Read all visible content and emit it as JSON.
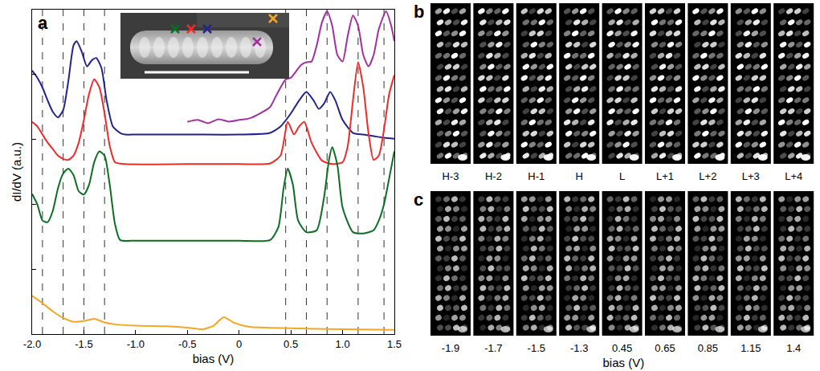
{
  "chart_data": {
    "type": "line",
    "panel_label": "a",
    "x_label": "bias (V)",
    "y_label": "dI/dV (a.u.)",
    "xlim": [
      -2,
      1.5
    ],
    "xticks": [
      {
        "value": -2,
        "label": "-2.0"
      },
      -1.5,
      {
        "value": -1,
        "label": "-1.0"
      },
      -0.5,
      0,
      0.5,
      {
        "value": 1,
        "label": "1.0"
      },
      1.5
    ],
    "ylim": [
      0,
      10
    ],
    "yticks": [
      0,
      2,
      4,
      6,
      8,
      10
    ],
    "tick_labels": "x",
    "grid": false,
    "line_style": "solid",
    "vlines": {
      "x": [
        -1.9,
        -1.7,
        -1.5,
        -1.3,
        0.45,
        0.65,
        0.85,
        1.15,
        1.4
      ],
      "line_style": "dashed"
    },
    "series": [
      {
        "color": "#23238f",
        "x": [
          -2.0,
          -1.95,
          -1.9,
          -1.85,
          -1.8,
          -1.75,
          -1.7,
          -1.65,
          -1.6,
          -1.57,
          -1.52,
          -1.47,
          -1.42,
          -1.38,
          -1.33,
          -1.28,
          -1.22,
          -1.15,
          -1.1,
          -1.0,
          -0.5,
          0,
          0.3,
          0.4,
          0.5,
          0.58,
          0.65,
          0.72,
          0.77,
          0.82,
          0.88,
          0.93,
          1.0,
          1.1,
          1.2,
          1.3,
          1.4,
          1.5
        ],
        "values": [
          8.12,
          7.9,
          7.6,
          7.2,
          6.85,
          6.68,
          6.9,
          7.8,
          8.9,
          9.03,
          8.7,
          8.25,
          8.45,
          8.51,
          8.2,
          7.2,
          6.4,
          6.2,
          6.15,
          6.15,
          6.15,
          6.15,
          6.2,
          6.4,
          6.8,
          7.2,
          7.46,
          7.2,
          6.94,
          7.1,
          7.46,
          7.2,
          6.6,
          6.2,
          6.15,
          6.1,
          6.05,
          6.02
        ]
      },
      {
        "color": "#f02b2b",
        "x": [
          -2.0,
          -1.95,
          -1.9,
          -1.85,
          -1.8,
          -1.75,
          -1.7,
          -1.65,
          -1.6,
          -1.55,
          -1.5,
          -1.45,
          -1.4,
          -1.35,
          -1.3,
          -1.25,
          -1.2,
          -1.1,
          -0.5,
          0,
          0.3,
          0.4,
          0.47,
          0.53,
          0.58,
          0.63,
          0.7,
          0.8,
          0.9,
          1.0,
          1.05,
          1.1,
          1.15,
          1.2,
          1.25,
          1.3,
          1.35,
          1.4,
          1.45,
          1.5
        ],
        "values": [
          6.54,
          6.4,
          6.15,
          5.9,
          5.7,
          5.5,
          5.4,
          5.37,
          5.5,
          5.9,
          6.6,
          7.4,
          7.85,
          7.6,
          6.8,
          5.8,
          5.3,
          5.24,
          5.24,
          5.24,
          5.26,
          5.5,
          6.54,
          6.15,
          6.4,
          6.54,
          5.9,
          5.35,
          5.24,
          5.3,
          5.8,
          7.2,
          8.38,
          7.6,
          6.2,
          5.37,
          5.5,
          6.3,
          7.4,
          7.98
        ]
      },
      {
        "color": "#0c6e22",
        "x": [
          -2.0,
          -1.95,
          -1.9,
          -1.85,
          -1.8,
          -1.75,
          -1.7,
          -1.65,
          -1.6,
          -1.55,
          -1.5,
          -1.45,
          -1.4,
          -1.35,
          -1.3,
          -1.25,
          -1.2,
          -1.15,
          -1.0,
          -0.5,
          0,
          0.3,
          0.38,
          0.43,
          0.47,
          0.52,
          0.57,
          0.65,
          0.75,
          0.82,
          0.87,
          0.9,
          0.95,
          1.0,
          1.1,
          1.2,
          1.3,
          1.35,
          1.4,
          1.45,
          1.5
        ],
        "values": [
          4.32,
          4.0,
          3.5,
          3.45,
          3.8,
          4.5,
          4.95,
          5.1,
          4.9,
          4.4,
          4.3,
          4.6,
          5.3,
          5.63,
          5.5,
          4.6,
          3.4,
          2.9,
          2.88,
          2.88,
          2.88,
          2.9,
          3.3,
          4.5,
          5.1,
          4.6,
          3.5,
          3.14,
          3.2,
          4.2,
          5.4,
          5.76,
          5.2,
          3.9,
          3.14,
          3.1,
          3.2,
          3.5,
          4.0,
          4.8,
          5.63
        ]
      },
      {
        "color": "#f5a623",
        "x": [
          -2.0,
          -1.9,
          -1.8,
          -1.7,
          -1.6,
          -1.5,
          -1.4,
          -1.3,
          -1.2,
          -1.0,
          -0.7,
          -0.5,
          -0.35,
          -0.25,
          -0.15,
          -0.05,
          0.1,
          0.5,
          1.0,
          1.5
        ],
        "values": [
          1.18,
          0.95,
          0.7,
          0.5,
          0.38,
          0.4,
          0.47,
          0.36,
          0.3,
          0.26,
          0.24,
          0.2,
          0.15,
          0.25,
          0.52,
          0.35,
          0.22,
          0.18,
          0.15,
          0.13
        ]
      },
      {
        "color": "#a3309f",
        "x": [
          -0.5,
          -0.4,
          -0.3,
          -0.2,
          -0.1,
          0,
          0.1,
          0.2,
          0.3,
          0.35,
          0.4,
          0.45,
          0.5,
          0.55,
          0.6,
          0.65,
          0.7,
          0.75,
          0.8,
          0.85,
          0.9,
          0.95,
          1.0,
          1.05,
          1.1,
          1.15,
          1.2,
          1.25,
          1.3,
          1.35,
          1.42,
          1.47,
          1.5
        ],
        "values": [
          6.54,
          6.6,
          6.5,
          6.62,
          6.55,
          6.6,
          6.65,
          6.8,
          7.0,
          7.3,
          7.6,
          7.85,
          7.9,
          8.1,
          8.3,
          8.38,
          8.4,
          8.9,
          9.6,
          9.95,
          9.5,
          8.6,
          8.4,
          9.2,
          9.82,
          9.5,
          8.6,
          8.25,
          8.6,
          9.4,
          9.95,
          9.5,
          9.03
        ]
      }
    ]
  },
  "image_panels": [
    {
      "panel_label": "b",
      "captions": [
        "H-3",
        "H-2",
        "H-1",
        "H",
        "L",
        "L+1",
        "L+2",
        "L+3",
        "L+4"
      ]
    },
    {
      "panel_label": "c",
      "captions": [
        -1.9,
        -1.7,
        -1.5,
        -1.3,
        0.45,
        0.65,
        0.85,
        1.15,
        1.4
      ],
      "x_label": "bias (V)"
    }
  ]
}
